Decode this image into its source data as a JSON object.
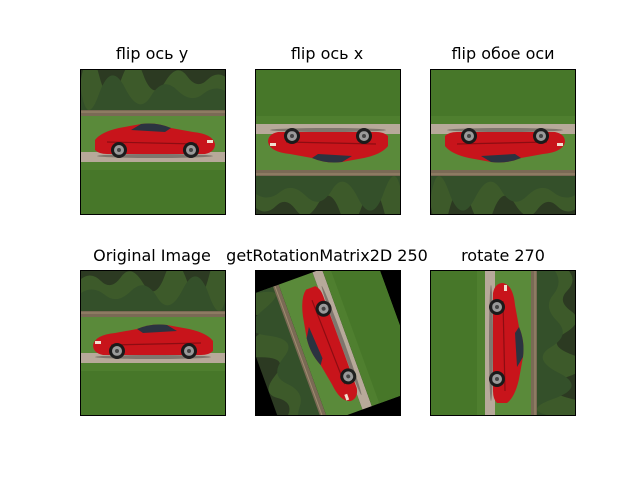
{
  "figure": {
    "panels": [
      {
        "id": "flip-y",
        "title": "flip ось y",
        "transform": "flip-horizontal"
      },
      {
        "id": "flip-x",
        "title": "flip ось x",
        "transform": "flip-vertical"
      },
      {
        "id": "flip-both",
        "title": "flip обое оси",
        "transform": "flip-both"
      },
      {
        "id": "original",
        "title": "Original Image",
        "transform": "none"
      },
      {
        "id": "rot-matrix",
        "title": "getRotationMatrix2D 250",
        "transform": "rotate-250"
      },
      {
        "id": "rotate-270",
        "title": "rotate 270",
        "transform": "rotate-270"
      }
    ]
  },
  "colors": {
    "grass": "#4f7f2f",
    "trees": "#2c3a22",
    "fence": "#7a6a55",
    "road": "#b7a99a",
    "car": "#c8141b",
    "background": "#ffffff"
  }
}
